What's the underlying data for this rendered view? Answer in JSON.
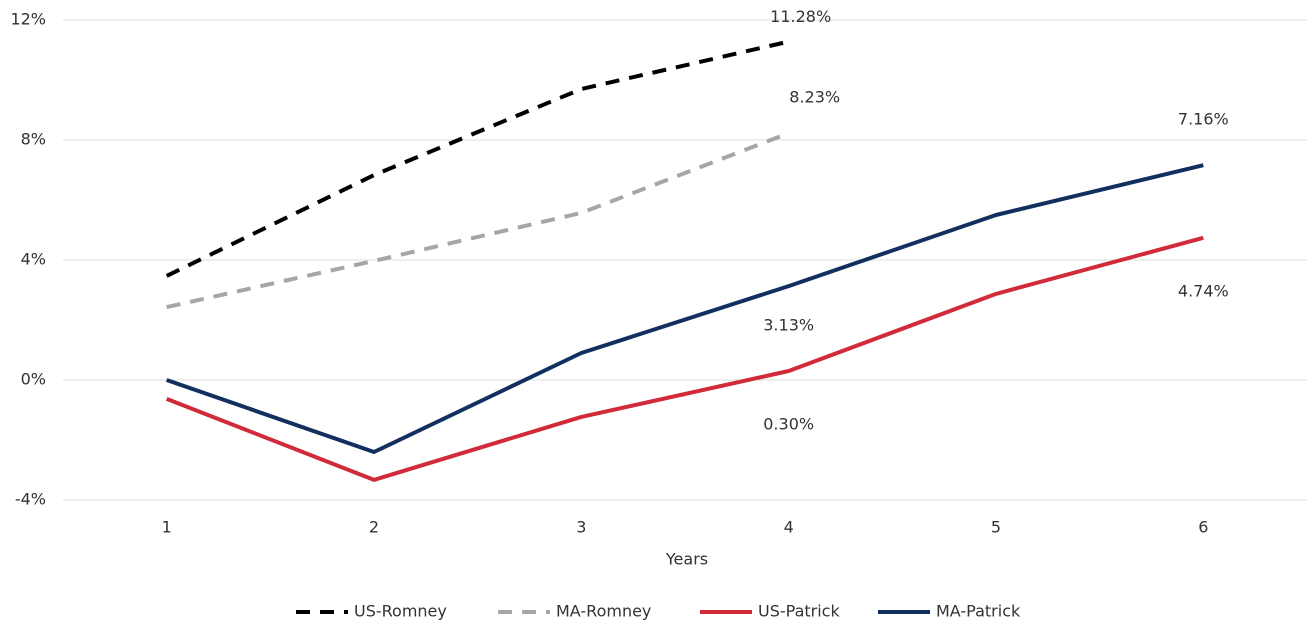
{
  "chart_data": {
    "type": "line",
    "x_label": "Years",
    "x": [
      1,
      2,
      3,
      4,
      5,
      6
    ],
    "xlim": [
      0.5,
      6.5
    ],
    "xticks": [
      1,
      2,
      3,
      4,
      5,
      6
    ],
    "ylim": [
      -4,
      12
    ],
    "yticks": [
      {
        "value": -4,
        "label": "-4%"
      },
      {
        "value": 0,
        "label": "0%"
      },
      {
        "value": 4,
        "label": "4%"
      },
      {
        "value": 8,
        "label": "8%"
      },
      {
        "value": 12,
        "label": "12%"
      }
    ],
    "grid": true,
    "legend": "bottom",
    "series": [
      {
        "name": "US-Romney",
        "color": "#000000",
        "dashed": true,
        "values": [
          3.47,
          6.83,
          9.7,
          11.28,
          null,
          null
        ],
        "value_labels": [
          null,
          null,
          null,
          "11.28%",
          null,
          null
        ]
      },
      {
        "name": "MA-Romney",
        "color": "#a6a6a6",
        "dashed": true,
        "values": [
          2.43,
          3.97,
          5.57,
          8.23,
          null,
          null
        ],
        "value_labels": [
          null,
          null,
          null,
          "8.23%",
          null,
          null
        ]
      },
      {
        "name": "US-Patrick",
        "color": "#d12b3a",
        "dashed": false,
        "values": [
          -0.63,
          -3.33,
          -1.23,
          0.3,
          2.87,
          4.74
        ],
        "value_labels": [
          null,
          null,
          null,
          "0.30%",
          null,
          "4.74%"
        ]
      },
      {
        "name": "MA-Patrick",
        "color": "#12305f",
        "dashed": false,
        "values": [
          0,
          -2.4,
          0.9,
          3.13,
          5.5,
          7.16
        ],
        "value_labels": [
          null,
          null,
          null,
          "3.13%",
          null,
          "7.16%"
        ]
      }
    ]
  }
}
